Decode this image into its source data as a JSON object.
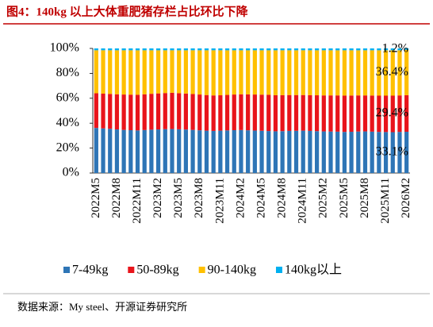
{
  "chart_data": {
    "type": "stacked_bar",
    "title": "图4：140kg 以上大体重肥猪存栏占比环比下降",
    "source": "数据来源：My steel、开源证券研究所",
    "categories": [
      "2022M5",
      null,
      null,
      "2022M8",
      null,
      null,
      "2022M11",
      null,
      null,
      "2023M2",
      null,
      null,
      "2023M5",
      null,
      null,
      "2023M8",
      null,
      null,
      "2023M11",
      null,
      null,
      "2024M2",
      null,
      null,
      "2024M5",
      null,
      null,
      "2024M8",
      null,
      null,
      "2024M11",
      null,
      null,
      "2025M2",
      null,
      null,
      "2025M5",
      null,
      null,
      "2025M8",
      null,
      null,
      "2025M11",
      null,
      null,
      "2026M2"
    ],
    "series": [
      {
        "name": "7-49kg",
        "color": "#2E75B6",
        "values": [
          36.2,
          35.8,
          35.5,
          35.0,
          34.6,
          34.4,
          34.2,
          34.5,
          34.8,
          35.0,
          35.2,
          35.3,
          35.1,
          34.9,
          34.6,
          34.3,
          34.0,
          33.8,
          34.0,
          34.2,
          34.4,
          34.5,
          34.3,
          34.1,
          33.9,
          33.7,
          33.5,
          33.6,
          33.8,
          33.9,
          34.0,
          33.8,
          33.6,
          33.4,
          33.3,
          33.2,
          33.0,
          33.1,
          33.3,
          33.4,
          33.2,
          33.0,
          32.9,
          32.8,
          33.0,
          33.1
        ],
        "value_labels": [
          null,
          null,
          null,
          null,
          null,
          null,
          null,
          null,
          null,
          null,
          null,
          null,
          null,
          null,
          null,
          null,
          null,
          null,
          null,
          null,
          null,
          null,
          null,
          null,
          null,
          null,
          null,
          null,
          null,
          null,
          null,
          null,
          null,
          null,
          null,
          null,
          null,
          null,
          null,
          null,
          null,
          null,
          null,
          null,
          null,
          "33.1%"
        ]
      },
      {
        "name": "50-89kg",
        "color": "#E8141B",
        "values": [
          27.8,
          27.9,
          28.0,
          28.2,
          28.4,
          28.5,
          28.6,
          28.7,
          28.8,
          28.9,
          29.0,
          29.1,
          29.0,
          28.9,
          28.8,
          28.7,
          28.6,
          28.5,
          28.4,
          28.5,
          28.6,
          28.7,
          28.8,
          28.9,
          29.0,
          29.1,
          29.0,
          28.9,
          28.8,
          28.7,
          28.6,
          28.7,
          28.8,
          28.9,
          29.0,
          29.1,
          29.2,
          29.1,
          29.0,
          28.9,
          29.0,
          29.1,
          29.2,
          29.3,
          29.3,
          29.4
        ],
        "value_labels": [
          null,
          null,
          null,
          null,
          null,
          null,
          null,
          null,
          null,
          null,
          null,
          null,
          null,
          null,
          null,
          null,
          null,
          null,
          null,
          null,
          null,
          null,
          null,
          null,
          null,
          null,
          null,
          null,
          null,
          null,
          null,
          null,
          null,
          null,
          null,
          null,
          null,
          null,
          null,
          null,
          null,
          null,
          null,
          null,
          null,
          "29.4%"
        ]
      },
      {
        "name": "90-140kg",
        "color": "#FFC000",
        "values": [
          34.5,
          34.8,
          35.0,
          35.3,
          35.5,
          35.6,
          35.7,
          35.3,
          34.9,
          34.6,
          34.3,
          34.1,
          34.4,
          34.7,
          35.1,
          35.5,
          35.9,
          36.2,
          36.1,
          35.8,
          35.5,
          35.3,
          35.4,
          35.5,
          35.6,
          35.7,
          36.0,
          36.0,
          35.9,
          35.9,
          35.9,
          36.0,
          36.1,
          36.2,
          36.2,
          36.2,
          36.3,
          36.3,
          36.2,
          36.2,
          36.3,
          36.4,
          36.4,
          36.4,
          36.2,
          36.4
        ],
        "value_labels": [
          null,
          null,
          null,
          null,
          null,
          null,
          null,
          null,
          null,
          null,
          null,
          null,
          null,
          null,
          null,
          null,
          null,
          null,
          null,
          null,
          null,
          null,
          null,
          null,
          null,
          null,
          null,
          null,
          null,
          null,
          null,
          null,
          null,
          null,
          null,
          null,
          null,
          null,
          null,
          null,
          null,
          null,
          null,
          null,
          null,
          "36.4%"
        ]
      },
      {
        "name": "140kg以上",
        "color": "#00B0F0",
        "values": [
          1.5,
          1.5,
          1.5,
          1.5,
          1.5,
          1.5,
          1.5,
          1.5,
          1.5,
          1.5,
          1.5,
          1.5,
          1.5,
          1.5,
          1.5,
          1.5,
          1.5,
          1.5,
          1.5,
          1.5,
          1.5,
          1.5,
          1.5,
          1.5,
          1.5,
          1.5,
          1.5,
          1.5,
          1.5,
          1.5,
          1.5,
          1.5,
          1.5,
          1.5,
          1.5,
          1.5,
          1.5,
          1.5,
          1.5,
          1.5,
          1.5,
          1.5,
          1.5,
          1.5,
          1.5,
          1.2
        ],
        "value_labels": [
          null,
          null,
          null,
          null,
          null,
          null,
          null,
          null,
          null,
          null,
          null,
          null,
          null,
          null,
          null,
          null,
          null,
          null,
          null,
          null,
          null,
          null,
          null,
          null,
          null,
          null,
          null,
          null,
          null,
          null,
          null,
          null,
          null,
          null,
          null,
          null,
          null,
          null,
          null,
          null,
          null,
          null,
          null,
          null,
          null,
          "1.2%"
        ]
      }
    ],
    "ylim": [
      0,
      100
    ],
    "yticks": [
      {
        "value": 0,
        "label": "0%"
      },
      {
        "value": 20,
        "label": "20%"
      },
      {
        "value": 40,
        "label": "40%"
      },
      {
        "value": 60,
        "label": "60%"
      },
      {
        "value": 80,
        "label": "80%"
      },
      {
        "value": 100,
        "label": "100%"
      }
    ]
  }
}
